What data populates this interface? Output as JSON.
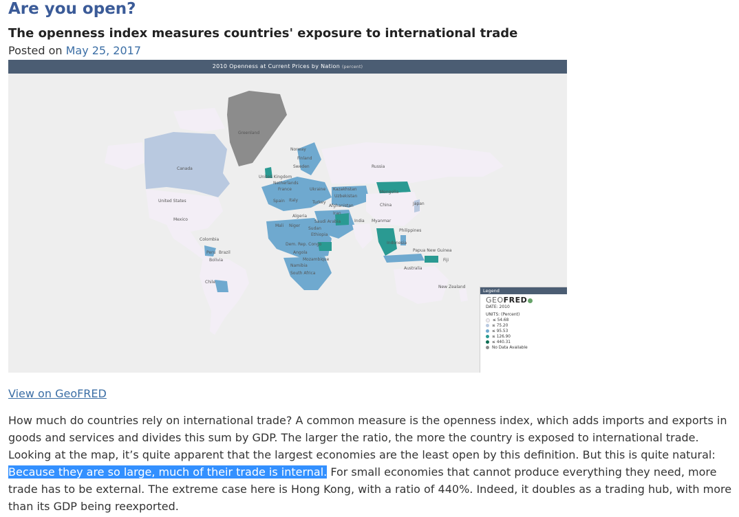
{
  "post": {
    "title": "Are you open?",
    "subtitle": "The openness index measures countries' exposure to international trade",
    "posted_prefix": "Posted on ",
    "date": "May 25, 2017"
  },
  "map": {
    "header_title": "2010 Openness at Current Prices by Nation",
    "header_unit": "(percent)",
    "country_labels": [
      "Greenland",
      "Norway",
      "Finland",
      "Sweden",
      "Canada",
      "Russia",
      "United Kingdom",
      "Netherlands",
      "France",
      "Ukraine",
      "Kazakhstan",
      "Mongolia",
      "Uzbekistan",
      "Spain",
      "Italy",
      "Turkey",
      "Afghanistan",
      "China",
      "Japan",
      "United States",
      "Iran",
      "Algeria",
      "Saudi Arabia",
      "Mexico",
      "Mali",
      "Niger",
      "Sudan",
      "India",
      "Myanmar",
      "Philippines",
      "Ethiopia",
      "Colombia",
      "Dem. Rep. Congo",
      "Indonesia",
      "Papua New Guinea",
      "Peru",
      "Brazil",
      "Angola",
      "Bolivia",
      "Mozambique",
      "Fiji",
      "Namibia",
      "Australia",
      "South Africa",
      "Chile",
      "New Zealand"
    ]
  },
  "legend": {
    "header": "Legend",
    "brand_light": "GEO",
    "brand_bold": "FRED",
    "date": "DATE: 2010",
    "units": "UNITS: (Percent)",
    "items": [
      {
        "label": "≤ 54.68",
        "color": "#f3eef6"
      },
      {
        "label": "≤ 75.20",
        "color": "#b9c9e0"
      },
      {
        "label": "≤ 95.53",
        "color": "#6fa9cf"
      },
      {
        "label": "≤ 126.90",
        "color": "#2a9a92"
      },
      {
        "label": "≤ 440.31",
        "color": "#0c6d53"
      },
      {
        "label": "No Data Available",
        "color": "#8c8c8c"
      }
    ]
  },
  "links": {
    "view_geofred": "View on GeoFRED"
  },
  "article": {
    "para_before": "How much do countries rely on international trade? A common measure is the openness index, which adds imports and exports in goods and services and divides this sum by GDP. The larger the ratio, the more the country is exposed to international trade. Looking at the map, it’s quite apparent that the largest economies are the least open by this definition. But this is quite natural: ",
    "para_highlight": "Because they are so large, much of their trade is internal.",
    "para_after": " For small economies that cannot produce everything they need, more trade has to be external. The extreme case here is Hong Kong, with a ratio of 440%. Indeed, it doubles as a trading hub, with more than its GDP being reexported."
  }
}
